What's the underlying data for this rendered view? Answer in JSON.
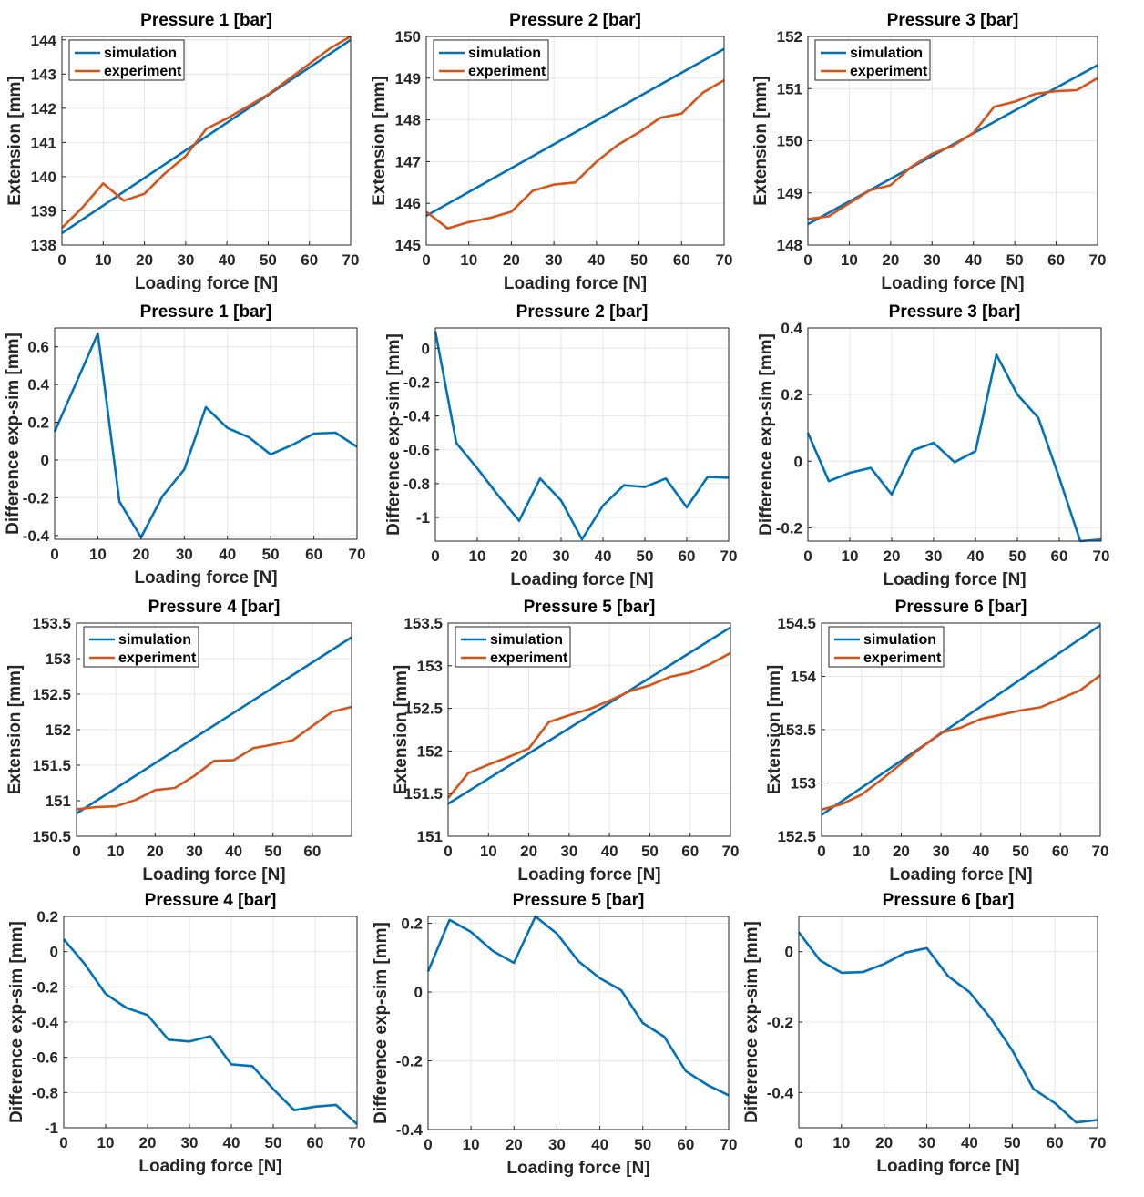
{
  "colors": {
    "simulation": "#0072BD",
    "experiment": "#D95319",
    "difference": "#0072BD"
  },
  "legend": {
    "simulation": "simulation",
    "experiment": "experiment"
  },
  "chart_data": [
    {
      "type": "line",
      "title": "Pressure 1 [bar]",
      "xlabel": "Loading force [N]",
      "ylabel": "Extension [mm]",
      "xlim": [
        0,
        70
      ],
      "ylim": [
        138,
        144.1
      ],
      "xticks": [
        0,
        10,
        20,
        30,
        40,
        50,
        60,
        70
      ],
      "xticklabels": [
        "0",
        "10",
        "20",
        "30",
        "40",
        "50",
        "60",
        "70"
      ],
      "yticks": [
        138,
        139,
        140,
        141,
        142,
        143,
        144
      ],
      "yticklabels": [
        "138",
        "139",
        "140",
        "141",
        "142",
        "143",
        "144"
      ],
      "legend": true,
      "grid": true,
      "series": [
        {
          "name": "simulation",
          "x": [
            0,
            70
          ],
          "y": [
            138.35,
            144.0
          ]
        },
        {
          "name": "experiment",
          "x": [
            0,
            5,
            10,
            15,
            20,
            25,
            30,
            35,
            40,
            45,
            50,
            55,
            60,
            65,
            70
          ],
          "y": [
            138.5,
            139.1,
            139.8,
            139.3,
            139.5,
            140.1,
            140.6,
            141.4,
            141.7,
            142.05,
            142.4,
            142.85,
            143.3,
            143.75,
            144.1
          ]
        }
      ]
    },
    {
      "type": "line",
      "title": "Pressure 2 [bar]",
      "xlabel": "Loading force [N]",
      "ylabel": "Extension [mm]",
      "xlim": [
        0,
        70
      ],
      "ylim": [
        145,
        150
      ],
      "xticks": [
        0,
        10,
        20,
        30,
        40,
        50,
        60,
        70
      ],
      "xticklabels": [
        "0",
        "10",
        "20",
        "30",
        "40",
        "50",
        "60",
        "70"
      ],
      "yticks": [
        145,
        146,
        147,
        148,
        149,
        150
      ],
      "yticklabels": [
        "145",
        "146",
        "147",
        "148",
        "149",
        "150"
      ],
      "legend": true,
      "grid": true,
      "series": [
        {
          "name": "simulation",
          "x": [
            0,
            70
          ],
          "y": [
            145.7,
            149.7
          ]
        },
        {
          "name": "experiment",
          "x": [
            0,
            5,
            10,
            15,
            20,
            25,
            30,
            35,
            40,
            45,
            50,
            55,
            60,
            65,
            70
          ],
          "y": [
            145.8,
            145.4,
            145.55,
            145.65,
            145.8,
            146.3,
            146.45,
            146.5,
            147.0,
            147.4,
            147.7,
            148.05,
            148.15,
            148.65,
            148.95
          ]
        }
      ]
    },
    {
      "type": "line",
      "title": "Pressure 3 [bar]",
      "xlabel": "Loading force [N]",
      "ylabel": "Extension [mm]",
      "xlim": [
        0,
        70
      ],
      "ylim": [
        148,
        152
      ],
      "xticks": [
        0,
        10,
        20,
        30,
        40,
        50,
        60,
        70
      ],
      "xticklabels": [
        "0",
        "10",
        "20",
        "30",
        "40",
        "50",
        "60",
        "70"
      ],
      "yticks": [
        148,
        149,
        150,
        151,
        152
      ],
      "yticklabels": [
        "148",
        "149",
        "150",
        "151",
        "152"
      ],
      "legend": true,
      "grid": true,
      "series": [
        {
          "name": "simulation",
          "x": [
            0,
            70
          ],
          "y": [
            148.4,
            151.45
          ]
        },
        {
          "name": "experiment",
          "x": [
            0,
            5,
            10,
            15,
            20,
            25,
            30,
            35,
            40,
            45,
            50,
            55,
            60,
            65,
            70
          ],
          "y": [
            148.5,
            148.55,
            148.8,
            149.05,
            149.15,
            149.5,
            149.75,
            149.9,
            150.15,
            150.65,
            150.75,
            150.9,
            150.95,
            150.97,
            151.2
          ]
        }
      ]
    },
    {
      "type": "line",
      "title": "Pressure 1 [bar]",
      "xlabel": "Loading force [N]",
      "ylabel": "Difference exp-sim [mm]",
      "xlim": [
        0,
        70
      ],
      "ylim": [
        -0.42,
        0.7
      ],
      "xticks": [
        0,
        10,
        20,
        30,
        40,
        50,
        60,
        70
      ],
      "xticklabels": [
        "0",
        "10",
        "20",
        "30",
        "40",
        "50",
        "60",
        "70"
      ],
      "yticks": [
        -0.4,
        -0.2,
        0,
        0.2,
        0.4,
        0.6
      ],
      "yticklabels": [
        "-0.4",
        "-0.2",
        "0",
        "0.2",
        "0.4",
        "0.6"
      ],
      "legend": false,
      "grid": true,
      "series": [
        {
          "name": "difference",
          "x": [
            0,
            5,
            10,
            15,
            20,
            25,
            30,
            35,
            40,
            45,
            50,
            55,
            60,
            65,
            70
          ],
          "y": [
            0.15,
            0.41,
            0.67,
            -0.22,
            -0.41,
            -0.19,
            -0.05,
            0.28,
            0.17,
            0.12,
            0.03,
            0.08,
            0.14,
            0.145,
            0.07
          ]
        }
      ]
    },
    {
      "type": "line",
      "title": "Pressure 2 [bar]",
      "xlabel": "Loading force [N]",
      "ylabel": "Difference exp-sim [mm]",
      "xlim": [
        0,
        70
      ],
      "ylim": [
        -1.14,
        0.12
      ],
      "xticks": [
        0,
        10,
        20,
        30,
        40,
        50,
        60,
        70
      ],
      "xticklabels": [
        "0",
        "10",
        "20",
        "30",
        "40",
        "50",
        "60",
        "70"
      ],
      "yticks": [
        -1,
        -0.8,
        -0.6,
        -0.4,
        -0.2,
        0
      ],
      "yticklabels": [
        "-1",
        "-0.8",
        "-0.6",
        "-0.4",
        "-0.2",
        "0"
      ],
      "legend": false,
      "grid": true,
      "series": [
        {
          "name": "difference",
          "x": [
            0,
            5,
            10,
            15,
            20,
            25,
            30,
            35,
            40,
            45,
            50,
            55,
            60,
            65,
            70
          ],
          "y": [
            0.1,
            -0.56,
            -0.71,
            -0.87,
            -1.02,
            -0.77,
            -0.9,
            -1.13,
            -0.93,
            -0.81,
            -0.82,
            -0.77,
            -0.94,
            -0.76,
            -0.765
          ]
        }
      ]
    },
    {
      "type": "line",
      "title": "Pressure 3 [bar]",
      "xlabel": "Loading force [N]",
      "ylabel": "Difference exp-sim [mm]",
      "xlim": [
        0,
        70
      ],
      "ylim": [
        -0.24,
        0.4
      ],
      "xticks": [
        0,
        10,
        20,
        30,
        40,
        50,
        60,
        70
      ],
      "xticklabels": [
        "0",
        "10",
        "20",
        "30",
        "40",
        "50",
        "60",
        "70"
      ],
      "yticks": [
        -0.2,
        0,
        0.2,
        0.4
      ],
      "yticklabels": [
        "-0.2",
        "0",
        "0.2",
        "0.4"
      ],
      "legend": false,
      "grid": true,
      "series": [
        {
          "name": "difference",
          "x": [
            0,
            5,
            10,
            15,
            20,
            25,
            30,
            35,
            40,
            45,
            50,
            55,
            60,
            65,
            70
          ],
          "y": [
            0.085,
            -0.06,
            -0.035,
            -0.02,
            -0.1,
            0.032,
            0.055,
            -0.003,
            0.03,
            0.32,
            0.2,
            0.13,
            -0.05,
            -0.24,
            -0.235
          ]
        }
      ]
    },
    {
      "type": "line",
      "title": "Pressure 4 [bar]",
      "xlabel": "Loading force [N]",
      "ylabel": "Extension [mm]",
      "xlim": [
        0,
        70
      ],
      "ylim": [
        150.5,
        153.5
      ],
      "xticks": [
        0,
        10,
        20,
        30,
        40,
        50,
        60
      ],
      "xticklabels": [
        "0",
        "10",
        "20",
        "30",
        "40",
        "50",
        "60"
      ],
      "yticks": [
        150.5,
        151,
        151.5,
        152,
        152.5,
        153,
        153.5
      ],
      "yticklabels": [
        "150.5",
        "151",
        "151.5",
        "152",
        "152.5",
        "153",
        "153.5"
      ],
      "legend": true,
      "grid": true,
      "series": [
        {
          "name": "simulation",
          "x": [
            0,
            70
          ],
          "y": [
            150.82,
            153.3
          ]
        },
        {
          "name": "experiment",
          "x": [
            0,
            5,
            10,
            15,
            20,
            25,
            30,
            35,
            40,
            45,
            50,
            55,
            60,
            65,
            70
          ],
          "y": [
            150.88,
            150.91,
            150.92,
            151.01,
            151.15,
            151.18,
            151.35,
            151.56,
            151.57,
            151.74,
            151.79,
            151.85,
            152.05,
            152.25,
            152.32
          ]
        }
      ]
    },
    {
      "type": "line",
      "title": "Pressure 5 [bar]",
      "xlabel": "Loading force [N]",
      "ylabel": "Extension [mm]",
      "xlim": [
        0,
        70
      ],
      "ylim": [
        151,
        153.5
      ],
      "xticks": [
        0,
        10,
        20,
        30,
        40,
        50,
        60,
        70
      ],
      "xticklabels": [
        "0",
        "10",
        "20",
        "30",
        "40",
        "50",
        "60",
        "70"
      ],
      "yticks": [
        151,
        151.5,
        152,
        152.5,
        153,
        153.5
      ],
      "yticklabels": [
        "151",
        "151.5",
        "152",
        "152.5",
        "153",
        "153.5"
      ],
      "legend": true,
      "grid": true,
      "series": [
        {
          "name": "simulation",
          "x": [
            0,
            70
          ],
          "y": [
            151.38,
            153.45
          ]
        },
        {
          "name": "experiment",
          "x": [
            0,
            5,
            10,
            15,
            20,
            25,
            30,
            35,
            40,
            45,
            50,
            55,
            60,
            65,
            70
          ],
          "y": [
            151.45,
            151.74,
            151.84,
            151.93,
            152.03,
            152.34,
            152.42,
            152.49,
            152.59,
            152.7,
            152.77,
            152.87,
            152.92,
            153.02,
            153.15
          ]
        }
      ]
    },
    {
      "type": "line",
      "title": "Pressure 6 [bar]",
      "xlabel": "Loading force [N]",
      "ylabel": "Extension [mm]",
      "xlim": [
        0,
        70
      ],
      "ylim": [
        152.5,
        154.5
      ],
      "xticks": [
        0,
        10,
        20,
        30,
        40,
        50,
        60,
        70
      ],
      "xticklabels": [
        "0",
        "10",
        "20",
        "30",
        "40",
        "50",
        "60",
        "70"
      ],
      "yticks": [
        152.5,
        153,
        153.5,
        154,
        154.5
      ],
      "yticklabels": [
        "152.5",
        "153",
        "153.5",
        "154",
        "154.5"
      ],
      "legend": true,
      "grid": true,
      "series": [
        {
          "name": "simulation",
          "x": [
            0,
            70
          ],
          "y": [
            152.7,
            154.48
          ]
        },
        {
          "name": "experiment",
          "x": [
            0,
            5,
            10,
            15,
            20,
            25,
            30,
            35,
            40,
            45,
            50,
            55,
            60,
            65,
            70
          ],
          "y": [
            152.75,
            152.8,
            152.89,
            153.03,
            153.18,
            153.33,
            153.47,
            153.52,
            153.6,
            153.64,
            153.68,
            153.71,
            153.79,
            153.87,
            154.01
          ]
        }
      ]
    },
    {
      "type": "line",
      "title": "Pressure 4 [bar]",
      "xlabel": "Loading force [N]",
      "ylabel": "Difference exp-sim [mm]",
      "xlim": [
        0,
        70
      ],
      "ylim": [
        -1,
        0.2
      ],
      "xticks": [
        0,
        10,
        20,
        30,
        40,
        50,
        60,
        70
      ],
      "xticklabels": [
        "0",
        "10",
        "20",
        "30",
        "40",
        "50",
        "60",
        "70"
      ],
      "yticks": [
        -1,
        -0.8,
        -0.6,
        -0.4,
        -0.2,
        0,
        0.2
      ],
      "yticklabels": [
        "-1",
        "-0.8",
        "-0.6",
        "-0.4",
        "-0.2",
        "0",
        "0.2"
      ],
      "legend": false,
      "grid": true,
      "series": [
        {
          "name": "difference",
          "x": [
            0,
            5,
            10,
            15,
            20,
            25,
            30,
            35,
            40,
            45,
            50,
            55,
            60,
            65,
            70
          ],
          "y": [
            0.07,
            -0.07,
            -0.24,
            -0.32,
            -0.36,
            -0.5,
            -0.51,
            -0.48,
            -0.64,
            -0.65,
            -0.78,
            -0.9,
            -0.88,
            -0.87,
            -0.98
          ]
        }
      ]
    },
    {
      "type": "line",
      "title": "Pressure 5 [bar]",
      "xlabel": "Loading force [N]",
      "ylabel": "Difference exp-sim [mm]",
      "xlim": [
        0,
        70
      ],
      "ylim": [
        -0.4,
        0.22
      ],
      "xticks": [
        0,
        10,
        20,
        30,
        40,
        50,
        60,
        70
      ],
      "xticklabels": [
        "0",
        "10",
        "20",
        "30",
        "40",
        "50",
        "60",
        "70"
      ],
      "yticks": [
        -0.4,
        -0.2,
        0,
        0.2
      ],
      "yticklabels": [
        "-0.4",
        "-0.2",
        "0",
        "0.2"
      ],
      "legend": false,
      "grid": true,
      "series": [
        {
          "name": "difference",
          "x": [
            0,
            5,
            10,
            15,
            20,
            25,
            30,
            35,
            40,
            45,
            50,
            55,
            60,
            65,
            70
          ],
          "y": [
            0.06,
            0.21,
            0.175,
            0.12,
            0.085,
            0.22,
            0.17,
            0.09,
            0.04,
            0.005,
            -0.09,
            -0.13,
            -0.23,
            -0.27,
            -0.3
          ]
        }
      ]
    },
    {
      "type": "line",
      "title": "Pressure 6 [bar]",
      "xlabel": "Loading force [N]",
      "ylabel": "Difference exp-sim [mm]",
      "xlim": [
        0,
        70
      ],
      "ylim": [
        -0.5,
        0.1
      ],
      "xticks": [
        0,
        10,
        20,
        30,
        40,
        50,
        60,
        70
      ],
      "xticklabels": [
        "0",
        "10",
        "20",
        "30",
        "40",
        "50",
        "60",
        "70"
      ],
      "yticks": [
        -0.4,
        -0.2,
        0
      ],
      "yticklabels": [
        "-0.4",
        "-0.2",
        "0"
      ],
      "legend": false,
      "grid": true,
      "series": [
        {
          "name": "difference",
          "x": [
            0,
            5,
            10,
            15,
            20,
            25,
            30,
            35,
            40,
            45,
            50,
            55,
            60,
            65,
            70
          ],
          "y": [
            0.055,
            -0.025,
            -0.06,
            -0.058,
            -0.035,
            -0.003,
            0.01,
            -0.07,
            -0.115,
            -0.19,
            -0.28,
            -0.39,
            -0.43,
            -0.485,
            -0.478
          ]
        }
      ]
    }
  ]
}
